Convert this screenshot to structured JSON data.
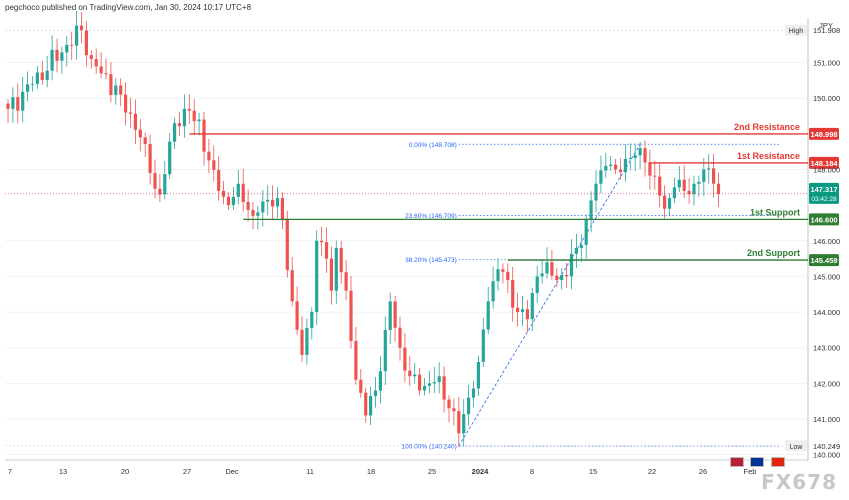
{
  "header": {
    "publisher": "pegchoco published on TradingView.com, Jan 30, 2024 10:17 UTC+8"
  },
  "watermark": "FX678",
  "colors": {
    "up": "#26a69a",
    "down": "#ef5350",
    "resistance": "#e53935",
    "support": "#2e7d32",
    "fib": "#2962ff",
    "grid": "#eeeeee",
    "current_price": "#089981"
  },
  "chart_data": {
    "type": "candlestick",
    "symbol_currency": "JPY",
    "y_axis": {
      "ylim": [
        139.85,
        152.25
      ],
      "ticks": [
        "151.000",
        "150.000",
        "148.000",
        "146.000",
        "145.000",
        "144.000",
        "143.000",
        "142.000",
        "141.000",
        "140.000"
      ],
      "high_label": "High",
      "high_value": "151.908",
      "low_label": "Low",
      "low_value": "140.249"
    },
    "x_axis": {
      "labels": [
        "7",
        "13",
        "20",
        "27",
        "Dec",
        "11",
        "18",
        "25",
        "2024",
        "8",
        "15",
        "22",
        "26",
        "Feb"
      ],
      "bold_label": "2024"
    },
    "current_price": {
      "value": "147.317",
      "countdown": "03:42:28",
      "price": 147.317
    },
    "levels": [
      {
        "name": "2nd Resistance",
        "price": 148.998,
        "label": "148.998",
        "kind": "resistance"
      },
      {
        "name": "1st Resistance",
        "price": 148.184,
        "label": "148.184",
        "kind": "resistance"
      },
      {
        "name": "1st Support",
        "price": 146.6,
        "label": "146.600",
        "kind": "support"
      },
      {
        "name": "2nd Support",
        "price": 145.459,
        "label": "145.459",
        "kind": "support"
      }
    ],
    "fib_levels": [
      {
        "label": "0.00% (148.708)",
        "price": 148.708
      },
      {
        "label": "23.60% (146.709)",
        "price": 146.709
      },
      {
        "label": "38.20% (145.473)",
        "price": 145.473
      },
      {
        "label": "100.00% (140.240)",
        "price": 140.24
      }
    ],
    "anchors": [
      [
        0,
        149.7
      ],
      [
        5,
        150.4
      ],
      [
        12,
        151.5
      ],
      [
        15,
        151.9
      ],
      [
        17,
        151.1
      ],
      [
        19,
        150.7
      ],
      [
        23,
        150.1
      ],
      [
        27,
        148.9
      ],
      [
        29,
        147.9
      ],
      [
        31,
        147.3
      ],
      [
        34,
        149.3
      ],
      [
        36,
        149.7
      ],
      [
        39,
        149.4
      ],
      [
        40,
        148.5
      ],
      [
        43,
        147.4
      ],
      [
        45,
        147.0
      ],
      [
        47,
        147.6
      ],
      [
        50,
        146.7
      ],
      [
        52,
        147.1
      ],
      [
        55,
        147.2
      ],
      [
        56,
        146.6
      ],
      [
        58,
        144.3
      ],
      [
        60,
        142.8
      ],
      [
        62,
        144.0
      ],
      [
        63,
        146.0
      ],
      [
        65,
        145.5
      ],
      [
        66,
        144.6
      ],
      [
        67,
        145.8
      ],
      [
        69,
        144.6
      ],
      [
        71,
        142.1
      ],
      [
        73,
        141.1
      ],
      [
        75,
        141.8
      ],
      [
        77,
        143.5
      ],
      [
        78,
        144.3
      ],
      [
        80,
        143.0
      ],
      [
        82,
        142.2
      ],
      [
        84,
        141.8
      ],
      [
        86,
        142.0
      ],
      [
        88,
        142.2
      ],
      [
        90,
        141.3
      ],
      [
        92,
        140.6
      ],
      [
        94,
        141.6
      ],
      [
        96,
        142.6
      ],
      [
        98,
        144.3
      ],
      [
        100,
        145.2
      ],
      [
        102,
        144.9
      ],
      [
        104,
        144.0
      ],
      [
        106,
        143.8
      ],
      [
        108,
        145.0
      ],
      [
        110,
        145.4
      ],
      [
        112,
        144.9
      ],
      [
        114,
        145.0
      ],
      [
        116,
        145.8
      ],
      [
        118,
        146.6
      ],
      [
        120,
        147.6
      ],
      [
        122,
        148.1
      ],
      [
        124,
        148.0
      ],
      [
        126,
        148.3
      ],
      [
        128,
        148.4
      ],
      [
        130,
        148.2
      ],
      [
        132,
        147.8
      ],
      [
        134,
        146.9
      ],
      [
        136,
        147.5
      ],
      [
        138,
        147.4
      ],
      [
        140,
        147.6
      ],
      [
        142,
        148.0
      ],
      [
        144,
        147.6
      ],
      [
        145,
        147.317
      ]
    ]
  }
}
